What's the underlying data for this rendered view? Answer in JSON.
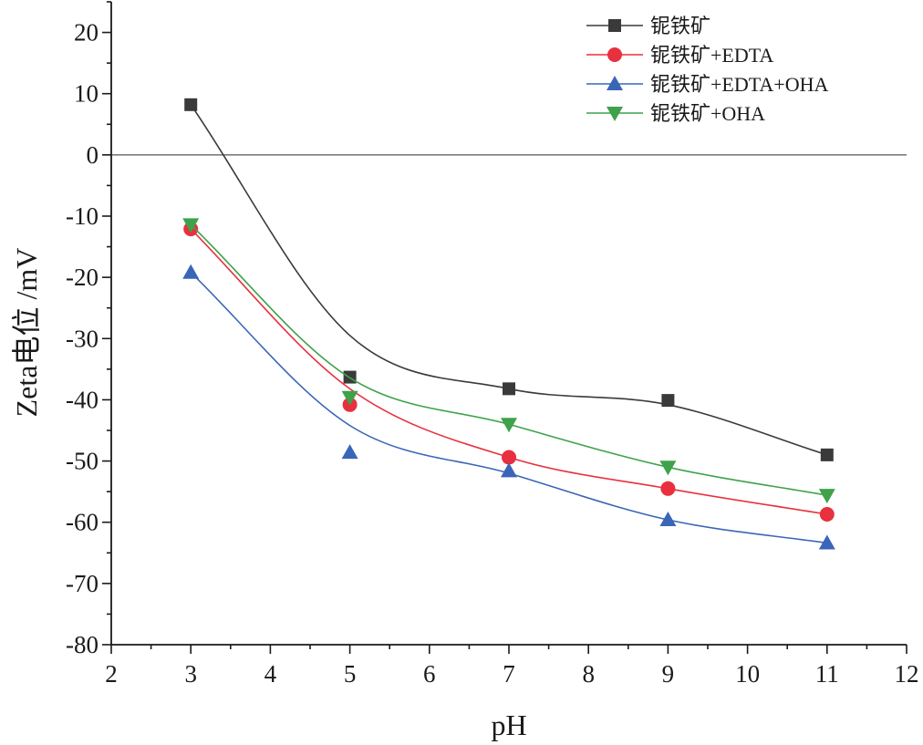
{
  "chart_data": {
    "type": "line",
    "xlabel": "pH",
    "ylabel": "Zeta电位 /mV",
    "xlim": [
      2,
      12
    ],
    "ylim": [
      -80,
      25
    ],
    "xticks": [
      "2",
      "3",
      "4",
      "5",
      "6",
      "7",
      "8",
      "9",
      "10",
      "11",
      "12"
    ],
    "yticks": [
      "20",
      "10",
      "0",
      "-10",
      "-20",
      "-30",
      "-40",
      "-50",
      "-60",
      "-70",
      "-80"
    ],
    "x": [
      3,
      5,
      7,
      9,
      11
    ],
    "reference_line_y": 0,
    "legend_position": "top-right",
    "series": [
      {
        "name": "铌铁矿",
        "color": "#3a3a3a",
        "marker": "square",
        "values": [
          8.2,
          -36.3,
          -38.2,
          -40.1,
          -49.0
        ],
        "fit": [
          8.2,
          -29.5,
          -38.2,
          -40.8,
          -49.0
        ]
      },
      {
        "name": "铌铁矿+EDTA",
        "color": "#e8303f",
        "marker": "circle",
        "values": [
          -12.1,
          -40.8,
          -49.4,
          -54.5,
          -58.7
        ],
        "fit": [
          -12.1,
          -38.2,
          -49.4,
          -54.5,
          -58.7
        ]
      },
      {
        "name": "铌铁矿+EDTA+OHA",
        "color": "#3a66b8",
        "marker": "triangle-up",
        "values": [
          -19.2,
          -48.6,
          -51.6,
          -59.6,
          -63.4
        ],
        "fit": [
          -19.2,
          -44.2,
          -52.0,
          -59.6,
          -63.4
        ]
      },
      {
        "name": "铌铁矿+OHA",
        "color": "#3ea24a",
        "marker": "triangle-down",
        "values": [
          -11.4,
          -39.6,
          -44.0,
          -51.0,
          -55.6
        ],
        "fit": [
          -11.4,
          -36.4,
          -44.0,
          -51.0,
          -55.6
        ]
      }
    ]
  }
}
